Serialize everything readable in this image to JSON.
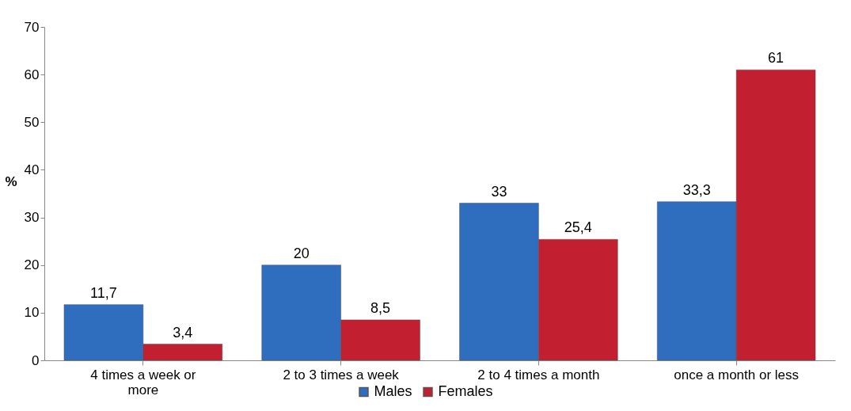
{
  "chart_data": {
    "type": "bar",
    "ylabel": "%",
    "categories": [
      "4 times a week or more",
      "2 to 3 times a week",
      "2 to 4 times a month",
      "once a month or less"
    ],
    "series": [
      {
        "name": "Males",
        "color": "#2f6ebf",
        "values": [
          11.7,
          20,
          33,
          33.3
        ],
        "value_labels": [
          "11,7",
          "20",
          "33",
          "33,3"
        ]
      },
      {
        "name": "Females",
        "color": "#c21f30",
        "values": [
          3.4,
          8.5,
          25.4,
          61
        ],
        "value_labels": [
          "3,4",
          "8,5",
          "25,4",
          "61"
        ]
      }
    ],
    "ylim": [
      0,
      70
    ],
    "yticks": [
      0,
      10,
      20,
      30,
      40,
      50,
      60,
      70
    ],
    "grid": false,
    "legend": "bottom"
  }
}
